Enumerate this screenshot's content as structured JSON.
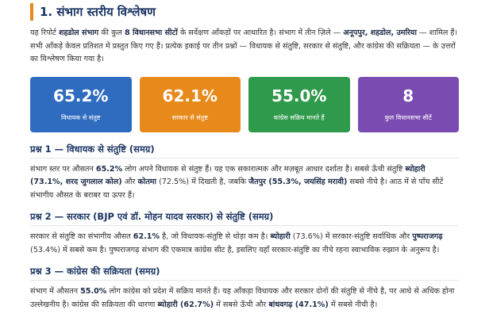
{
  "title": "1. संभाग स्तरीय विश्लेषण",
  "intro": {
    "segments": [
      {
        "text": "यह रिपोर्ट "
      },
      {
        "text": "शहडोल संभाग",
        "bold": true
      },
      {
        "text": " की कुल "
      },
      {
        "text": "8 विधानसभा सीटों",
        "bold": true
      },
      {
        "text": " के सर्वेक्षण आँकड़ों पर आधारित है। संभाग में तीन ज़िले — "
      },
      {
        "text": "अनूपपुर, शहडोल, उमरिया",
        "bold": true
      },
      {
        "text": " — शामिल हैं। सभी आँकड़े केवल प्रतिशत में प्रस्तुत किए गए हैं। प्रत्येक इकाई पर तीन प्रश्नों — विधायक से संतुष्टि, सरकार से संतुष्टि, और कांग्रेस की सक्रियता — के उत्तरों का विश्लेषण किया गया है।"
      }
    ]
  },
  "cards": [
    {
      "value": "65.2%",
      "label": "विधायक से संतुष्ट",
      "color": "#2f6cc0"
    },
    {
      "value": "62.1%",
      "label": "सरकार से संतुष्ट",
      "color": "#e8891c"
    },
    {
      "value": "55.0%",
      "label": "कांग्रेस सक्रिय मानते हैं",
      "color": "#2f9a4b"
    },
    {
      "value": "8",
      "label": "कुल विधानसभा सीटें",
      "color": "#7a4cb2"
    }
  ],
  "sections": [
    {
      "heading": "प्रश्न 1 — विधायक से संतुष्टि (समग्र)",
      "segments": [
        {
          "text": "संभाग स्तर पर औसतन "
        },
        {
          "text": "65.2%",
          "bold": true
        },
        {
          "text": " लोग अपने विधायक से संतुष्ट हैं। यह एक सकारात्मक और मज़बूत आधार दर्शाता है। सबसे ऊँची संतुष्टि "
        },
        {
          "text": "ब्योहारी (73.1%, शरद जुगलाल कोल)",
          "bold": true
        },
        {
          "text": " और "
        },
        {
          "text": "कोतमा",
          "bold": true
        },
        {
          "text": " (72.5%) में दिखती है, जबकि "
        },
        {
          "text": "जैतपुर (55.3%, जयसिंह मरावी)",
          "bold": true
        },
        {
          "text": " सबसे नीचे है। आठ में से पाँच सीटें संभागीय औसत के बराबर या ऊपर हैं।"
        }
      ]
    },
    {
      "heading": "प्रश्न 2 — सरकार (BJP एवं डॉ. मोहन यादव सरकार) से संतुष्टि (समग्र)",
      "segments": [
        {
          "text": "सरकार से संतुष्टि का संभागीय औसत "
        },
        {
          "text": "62.1%",
          "bold": true
        },
        {
          "text": " है, जो विधायक-संतुष्टि से थोड़ा कम है। "
        },
        {
          "text": "ब्योहारी",
          "bold": true
        },
        {
          "text": " (73.6%) में सरकार-संतुष्टि सर्वाधिक और "
        },
        {
          "text": "पुष्पराजगढ़",
          "bold": true
        },
        {
          "text": " (53.4%) में सबसे कम है। पुष्पराजगढ़ संभाग की एकमात्र कांग्रेस सीट है, इसलिए वहाँ सरकार-संतुष्टि का नीचे रहना स्वाभाविक रुझान के अनुरूप है।"
        }
      ]
    },
    {
      "heading": "प्रश्न 3 — कांग्रेस की सक्रियता (समग्र)",
      "segments": [
        {
          "text": "संभाग में औसतन "
        },
        {
          "text": "55.0%",
          "bold": true
        },
        {
          "text": " लोग कांग्रेस को प्रदेश में सक्रिय मानते हैं। यह आँकड़ा विधायक और सरकार दोनों की संतुष्टि से नीचे है, पर आधे से अधिक होना उल्लेखनीय है। कांग्रेस की सक्रियता की धारणा "
        },
        {
          "text": "ब्योहारी (62.7%)",
          "bold": true
        },
        {
          "text": " में सबसे ऊँची और "
        },
        {
          "text": "बांधवगढ़ (47.1%)",
          "bold": true
        },
        {
          "text": " में सबसे नीची है।"
        }
      ]
    }
  ]
}
